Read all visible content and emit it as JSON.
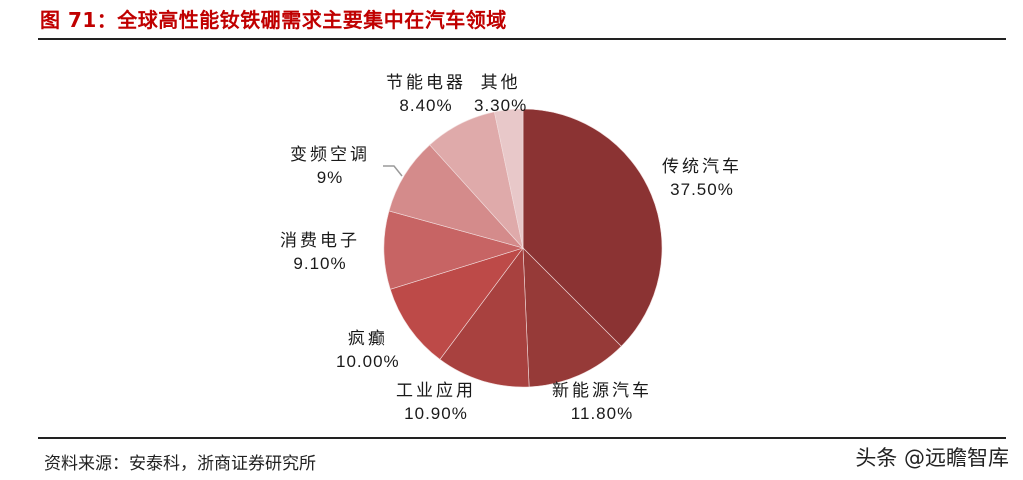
{
  "header": {
    "title": "图 71：全球高性能钕铁硼需求主要集中在汽车领域"
  },
  "footer": {
    "source": "资料来源：安泰科，浙商证券研究所",
    "watermark": "头条 @远瞻智库"
  },
  "labels": [
    {
      "name": "传统汽车",
      "value": "37.50%"
    },
    {
      "name": "新能源汽车",
      "value": "11.80%"
    },
    {
      "name": "工业应用",
      "value": "10.90%"
    },
    {
      "name": "疯癫",
      "value": "10.00%"
    },
    {
      "name": "消费电子",
      "value": "9.10%"
    },
    {
      "name": "变频空调",
      "value": "9%"
    },
    {
      "name": "节能电器",
      "value": "8.40%"
    },
    {
      "name": "其他",
      "value": "3.30%"
    }
  ],
  "chart_data": {
    "type": "pie",
    "title": "图 71：全球高性能钕铁硼需求主要集中在汽车领域",
    "categories": [
      "传统汽车",
      "新能源汽车",
      "工业应用",
      "疯癫",
      "消费电子",
      "变频空调",
      "节能电器",
      "其他"
    ],
    "values": [
      37.5,
      11.8,
      10.9,
      10.0,
      9.1,
      9.0,
      8.4,
      3.3
    ],
    "value_labels": [
      "37.50%",
      "11.80%",
      "10.90%",
      "10.00%",
      "9.10%",
      "9%",
      "8.40%",
      "3.30%"
    ],
    "colors": [
      "#8b3333",
      "#963a38",
      "#a8413f",
      "#bd4a48",
      "#c76464",
      "#d48b8b",
      "#dfaaaa",
      "#e8c8c9"
    ],
    "start_angle": "12 o'clock",
    "direction": "clockwise",
    "legend": "none (data labels outside slices)",
    "source": "资料来源：安泰科，浙商证券研究所"
  }
}
